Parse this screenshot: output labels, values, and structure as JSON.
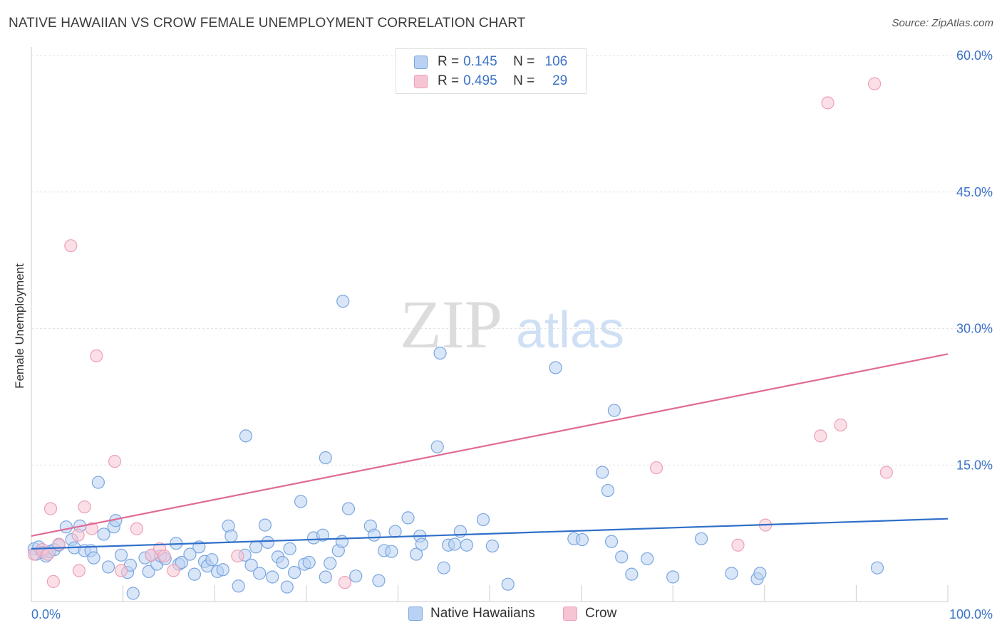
{
  "header": {
    "title": "NATIVE HAWAIIAN VS CROW FEMALE UNEMPLOYMENT CORRELATION CHART",
    "source": "Source: ZipAtlas.com"
  },
  "watermark": {
    "zip": "ZIP",
    "atlas": "atlas"
  },
  "colors": {
    "blue_fill": "#b9d1f2",
    "blue_stroke": "#7aa6e0",
    "blue_line": "#2f6fc9",
    "pink_fill": "#f7c4d3",
    "pink_stroke": "#eda0b8",
    "pink_line": "#e06a96",
    "tick_text": "#3b72c8"
  },
  "legend": {
    "rows": [
      {
        "r_label": "R = ",
        "r_value": "0.145",
        "n_label": "N = ",
        "n_value": "106"
      },
      {
        "r_label": "R = ",
        "r_value": "0.495",
        "n_label": "N = ",
        "n_value": "29"
      }
    ]
  },
  "bottom_legend": {
    "series1": "Native Hawaiians",
    "series2": "Crow"
  },
  "chart_data": {
    "type": "scatter",
    "title": "NATIVE HAWAIIAN VS CROW FEMALE UNEMPLOYMENT CORRELATION CHART",
    "xlabel": "",
    "ylabel": "Female Unemployment",
    "xlim": [
      0,
      100
    ],
    "ylim": [
      0,
      60
    ],
    "x_tick_labels": [
      "0.0%",
      "100.0%"
    ],
    "y_ticks": [
      15,
      30,
      45,
      60
    ],
    "y_tick_labels": [
      "15.0%",
      "30.0%",
      "45.0%",
      "60.0%"
    ],
    "legend_position": "top-center",
    "series": [
      {
        "name": "Native Hawaiians",
        "trend": {
          "x": [
            0,
            100
          ],
          "y": [
            5.8,
            9.1
          ]
        },
        "points": [
          [
            0.3,
            5.8
          ],
          [
            0.5,
            5.2
          ],
          [
            0.8,
            6.0
          ],
          [
            1.2,
            5.4
          ],
          [
            1.6,
            5.0
          ],
          [
            2.0,
            5.5
          ],
          [
            2.5,
            5.7
          ],
          [
            3.0,
            6.2
          ],
          [
            3.8,
            8.2
          ],
          [
            4.4,
            6.8
          ],
          [
            4.7,
            5.9
          ],
          [
            5.3,
            8.3
          ],
          [
            5.8,
            5.6
          ],
          [
            6.5,
            5.6
          ],
          [
            6.8,
            4.8
          ],
          [
            7.3,
            13.1
          ],
          [
            7.9,
            7.4
          ],
          [
            8.4,
            3.8
          ],
          [
            9.0,
            8.2
          ],
          [
            9.2,
            8.9
          ],
          [
            9.8,
            5.1
          ],
          [
            10.5,
            3.2
          ],
          [
            10.8,
            4.0
          ],
          [
            11.1,
            0.9
          ],
          [
            12.4,
            4.8
          ],
          [
            12.8,
            3.3
          ],
          [
            13.1,
            5.1
          ],
          [
            13.7,
            4.1
          ],
          [
            14.1,
            5.0
          ],
          [
            14.6,
            4.7
          ],
          [
            15.8,
            6.4
          ],
          [
            16.1,
            4.1
          ],
          [
            16.4,
            4.3
          ],
          [
            17.3,
            5.2
          ],
          [
            17.8,
            3.0
          ],
          [
            18.3,
            6.0
          ],
          [
            18.9,
            4.4
          ],
          [
            19.2,
            3.9
          ],
          [
            19.7,
            4.6
          ],
          [
            20.3,
            3.3
          ],
          [
            20.9,
            3.5
          ],
          [
            21.5,
            8.3
          ],
          [
            21.8,
            7.2
          ],
          [
            22.6,
            1.7
          ],
          [
            23.3,
            5.1
          ],
          [
            23.4,
            18.2
          ],
          [
            24.0,
            4.0
          ],
          [
            24.5,
            6.0
          ],
          [
            24.9,
            3.1
          ],
          [
            25.5,
            8.4
          ],
          [
            25.8,
            6.5
          ],
          [
            26.3,
            2.7
          ],
          [
            26.9,
            4.9
          ],
          [
            27.4,
            4.3
          ],
          [
            27.9,
            1.6
          ],
          [
            28.2,
            5.8
          ],
          [
            28.7,
            3.2
          ],
          [
            29.4,
            11.0
          ],
          [
            29.8,
            4.1
          ],
          [
            30.3,
            4.3
          ],
          [
            30.8,
            7.0
          ],
          [
            31.8,
            7.3
          ],
          [
            32.1,
            2.7
          ],
          [
            32.6,
            4.2
          ],
          [
            32.1,
            15.8
          ],
          [
            33.5,
            5.6
          ],
          [
            33.9,
            6.6
          ],
          [
            34.0,
            33.0
          ],
          [
            34.6,
            10.2
          ],
          [
            35.4,
            2.8
          ],
          [
            37.0,
            8.3
          ],
          [
            37.4,
            7.3
          ],
          [
            37.9,
            2.3
          ],
          [
            38.5,
            5.6
          ],
          [
            39.3,
            5.5
          ],
          [
            39.7,
            7.7
          ],
          [
            41.1,
            9.2
          ],
          [
            42.0,
            5.2
          ],
          [
            42.4,
            7.2
          ],
          [
            42.6,
            6.3
          ],
          [
            44.3,
            17.0
          ],
          [
            44.6,
            27.3
          ],
          [
            45.0,
            3.7
          ],
          [
            45.5,
            6.2
          ],
          [
            46.2,
            6.3
          ],
          [
            46.8,
            7.7
          ],
          [
            47.5,
            6.2
          ],
          [
            49.3,
            9.0
          ],
          [
            50.3,
            6.1
          ],
          [
            52.0,
            1.9
          ],
          [
            57.2,
            25.7
          ],
          [
            59.2,
            6.9
          ],
          [
            60.1,
            6.8
          ],
          [
            62.3,
            14.2
          ],
          [
            62.9,
            12.2
          ],
          [
            63.3,
            6.6
          ],
          [
            63.6,
            21.0
          ],
          [
            64.4,
            4.9
          ],
          [
            65.5,
            3.0
          ],
          [
            67.2,
            4.7
          ],
          [
            70.0,
            2.7
          ],
          [
            73.1,
            6.9
          ],
          [
            76.4,
            3.1
          ],
          [
            79.2,
            2.5
          ],
          [
            79.5,
            3.1
          ],
          [
            92.3,
            3.7
          ]
        ]
      },
      {
        "name": "Crow",
        "trend": {
          "x": [
            0,
            100
          ],
          "y": [
            7.2,
            27.2
          ]
        },
        "points": [
          [
            0.3,
            5.2
          ],
          [
            1.2,
            5.7
          ],
          [
            1.8,
            5.2
          ],
          [
            2.1,
            10.2
          ],
          [
            2.4,
            2.2
          ],
          [
            3.0,
            6.3
          ],
          [
            4.3,
            39.1
          ],
          [
            5.1,
            7.3
          ],
          [
            5.2,
            3.4
          ],
          [
            5.8,
            10.4
          ],
          [
            6.6,
            8.0
          ],
          [
            7.1,
            27.0
          ],
          [
            9.1,
            15.4
          ],
          [
            9.8,
            3.4
          ],
          [
            11.5,
            8.0
          ],
          [
            13.1,
            5.1
          ],
          [
            14.0,
            5.8
          ],
          [
            14.5,
            5.0
          ],
          [
            15.5,
            3.4
          ],
          [
            22.5,
            5.0
          ],
          [
            34.2,
            2.1
          ],
          [
            68.2,
            14.7
          ],
          [
            77.1,
            6.2
          ],
          [
            80.1,
            8.4
          ],
          [
            86.1,
            18.2
          ],
          [
            86.9,
            54.8
          ],
          [
            88.3,
            19.4
          ],
          [
            92.0,
            56.9
          ],
          [
            93.3,
            14.2
          ]
        ]
      }
    ]
  }
}
